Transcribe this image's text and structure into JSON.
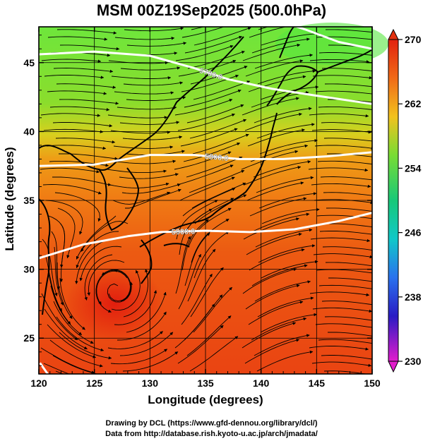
{
  "title": "MSM 00Z19Sep2025 (500.0hPa)",
  "xlabel": "Longitude (degrees)",
  "ylabel": "Latitude  (degrees)",
  "credits": [
    "Drawing by DCL (https://www.gfd-dennou.org/library/dcl/)",
    "Data from http://database.rish.kyoto-u.ac.jp/arch/jmadata/"
  ],
  "map": {
    "lon_range": [
      120,
      150
    ],
    "lat_range": [
      22.4,
      47.6
    ],
    "lon_ticks": [
      120,
      125,
      130,
      135,
      140,
      145,
      150
    ],
    "lat_ticks": [
      25,
      30,
      35,
      40,
      45
    ],
    "grid": true
  },
  "colorbar": {
    "range": [
      230,
      270
    ],
    "tick_labels": [
      "270",
      "262",
      "254",
      "246",
      "238",
      "230"
    ],
    "extend": "both"
  },
  "contours": [
    {
      "label": "5700.0",
      "points": [
        [
          120,
          45.6
        ],
        [
          125,
          45.8
        ],
        [
          130,
          45.5
        ],
        [
          134,
          44.6
        ],
        [
          137,
          43.8
        ],
        [
          141,
          43.1
        ],
        [
          145,
          42.6
        ],
        [
          150,
          42.0
        ]
      ]
    },
    {
      "label": "5800.0",
      "points": [
        [
          120,
          37.5
        ],
        [
          125,
          37.6
        ],
        [
          130,
          38.3
        ],
        [
          134,
          38.3
        ],
        [
          138,
          38.0
        ],
        [
          142,
          38.0
        ],
        [
          146,
          38.2
        ],
        [
          150,
          38.5
        ]
      ]
    },
    {
      "label": "5900.0",
      "points": [
        [
          120,
          30.8
        ],
        [
          124,
          31.8
        ],
        [
          128,
          32.4
        ],
        [
          131,
          32.7
        ],
        [
          135,
          32.8
        ],
        [
          139,
          32.7
        ],
        [
          143,
          32.9
        ],
        [
          147,
          33.5
        ],
        [
          150,
          34.1
        ]
      ]
    },
    {
      "label": "",
      "points": [
        [
          141,
          48.2
        ],
        [
          144,
          47.4
        ],
        [
          147,
          46.5
        ],
        [
          150,
          46.0
        ]
      ]
    },
    {
      "label": "",
      "points": [
        [
          120.1,
          23.2
        ],
        [
          120.8,
          22.4
        ]
      ]
    }
  ]
}
